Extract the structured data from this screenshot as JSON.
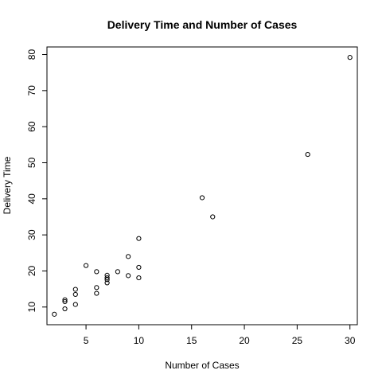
{
  "chart_data": {
    "type": "scatter",
    "title": "Delivery Time and Number of Cases",
    "xlabel": "Number of Cases",
    "ylabel": "Delivery Time",
    "xlim": [
      1.3,
      30.7
    ],
    "ylim": [
      5.1,
      82.1
    ],
    "x_ticks": [
      5,
      10,
      15,
      20,
      25,
      30
    ],
    "y_ticks": [
      10,
      20,
      30,
      40,
      50,
      60,
      70,
      80
    ],
    "grid": false,
    "legend": "none",
    "marker": "open-circle",
    "points": [
      {
        "x": 2,
        "y": 8.0
      },
      {
        "x": 3,
        "y": 9.5
      },
      {
        "x": 3,
        "y": 11.5
      },
      {
        "x": 3,
        "y": 12.0
      },
      {
        "x": 4,
        "y": 10.7
      },
      {
        "x": 4,
        "y": 13.5
      },
      {
        "x": 4,
        "y": 14.9
      },
      {
        "x": 5,
        "y": 21.5
      },
      {
        "x": 6,
        "y": 13.8
      },
      {
        "x": 6,
        "y": 15.4
      },
      {
        "x": 6,
        "y": 19.8
      },
      {
        "x": 7,
        "y": 16.7
      },
      {
        "x": 7,
        "y": 17.6
      },
      {
        "x": 7,
        "y": 18.1
      },
      {
        "x": 7,
        "y": 18.8
      },
      {
        "x": 8,
        "y": 19.8
      },
      {
        "x": 9,
        "y": 18.7
      },
      {
        "x": 9,
        "y": 24.0
      },
      {
        "x": 10,
        "y": 18.1
      },
      {
        "x": 10,
        "y": 21.0
      },
      {
        "x": 10,
        "y": 29.0
      },
      {
        "x": 16,
        "y": 40.3
      },
      {
        "x": 17,
        "y": 35.0
      },
      {
        "x": 26,
        "y": 52.3
      },
      {
        "x": 30,
        "y": 79.2
      }
    ]
  }
}
